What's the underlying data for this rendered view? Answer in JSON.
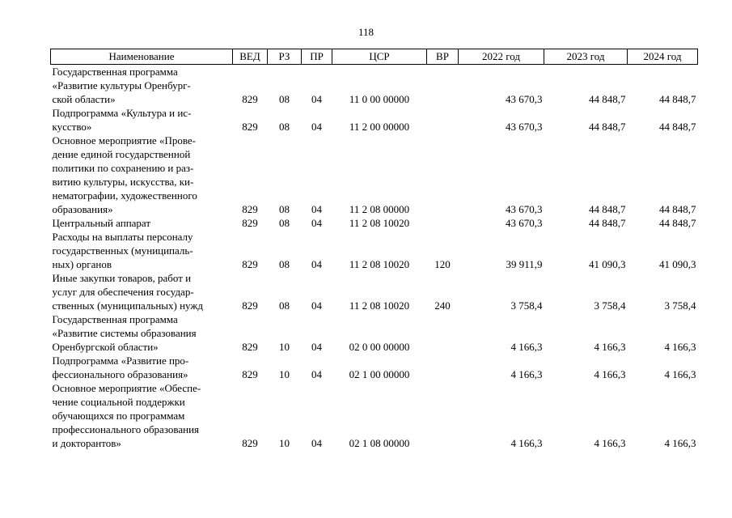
{
  "page_number": "118",
  "table": {
    "columns": [
      "Наименование",
      "ВЕД",
      "РЗ",
      "ПР",
      "ЦСР",
      "ВР",
      "2022 год",
      "2023 год",
      "2024 год"
    ],
    "rows": [
      {
        "name": "Государственная программа\n«Развитие культуры Оренбург-\nской области»",
        "ved": "829",
        "rz": "08",
        "pr": "04",
        "csr": "11 0 00 00000",
        "vr": "",
        "y2022": "43 670,3",
        "y2023": "44 848,7",
        "y2024": "44 848,7"
      },
      {
        "name": "Подпрограмма «Культура и ис-\nкусство»",
        "ved": "829",
        "rz": "08",
        "pr": "04",
        "csr": "11 2 00 00000",
        "vr": "",
        "y2022": "43 670,3",
        "y2023": "44 848,7",
        "y2024": "44 848,7"
      },
      {
        "name": "Основное мероприятие «Прове-\nдение единой государственной\nполитики по сохранению и раз-\nвитию культуры, искусства, ки-\nнематографии, художественного\nобразования»",
        "ved": "829",
        "rz": "08",
        "pr": "04",
        "csr": "11 2 08 00000",
        "vr": "",
        "y2022": "43 670,3",
        "y2023": "44 848,7",
        "y2024": "44 848,7"
      },
      {
        "name": "Центральный аппарат",
        "ved": "829",
        "rz": "08",
        "pr": "04",
        "csr": "11 2 08 10020",
        "vr": "",
        "y2022": "43 670,3",
        "y2023": "44 848,7",
        "y2024": "44 848,7"
      },
      {
        "name": "Расходы на выплаты персоналу\nгосударственных (муниципаль-\nных) органов",
        "ved": "829",
        "rz": "08",
        "pr": "04",
        "csr": "11 2 08 10020",
        "vr": "120",
        "y2022": "39 911,9",
        "y2023": "41 090,3",
        "y2024": "41 090,3"
      },
      {
        "name": "Иные закупки товаров, работ и\nуслуг для обеспечения государ-\nственных (муниципальных) нужд",
        "ved": "829",
        "rz": "08",
        "pr": "04",
        "csr": "11 2 08 10020",
        "vr": "240",
        "y2022": "3 758,4",
        "y2023": "3 758,4",
        "y2024": "3 758,4"
      },
      {
        "name": "Государственная программа\n«Развитие системы образования\nОренбургской области»",
        "ved": "829",
        "rz": "10",
        "pr": "04",
        "csr": "02 0 00 00000",
        "vr": "",
        "y2022": "4 166,3",
        "y2023": "4 166,3",
        "y2024": "4 166,3"
      },
      {
        "name": "Подпрограмма «Развитие про-\nфессионального образования»",
        "ved": "829",
        "rz": "10",
        "pr": "04",
        "csr": "02 1 00 00000",
        "vr": "",
        "y2022": "4 166,3",
        "y2023": "4 166,3",
        "y2024": "4 166,3"
      },
      {
        "name": "Основное мероприятие «Обеспе-\nчение социальной поддержки\nобучающихся по программам\nпрофессионального образования\nи докторантов»",
        "ved": "829",
        "rz": "10",
        "pr": "04",
        "csr": "02 1 08 00000",
        "vr": "",
        "y2022": "4 166,3",
        "y2023": "4 166,3",
        "y2024": "4 166,3"
      }
    ]
  }
}
